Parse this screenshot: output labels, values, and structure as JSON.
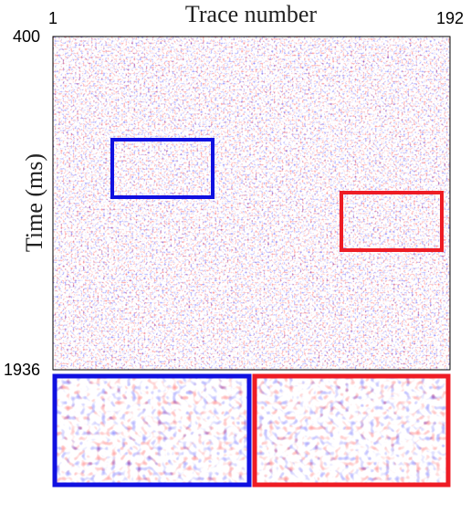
{
  "chart_data": {
    "type": "heatmap",
    "x_label": "Trace number",
    "y_label": "Time (ms)",
    "xlim": [
      1,
      192
    ],
    "xticks": [
      1,
      192
    ],
    "ylim": [
      1936,
      400
    ],
    "yticks": [
      400,
      1936
    ]
  }
}
